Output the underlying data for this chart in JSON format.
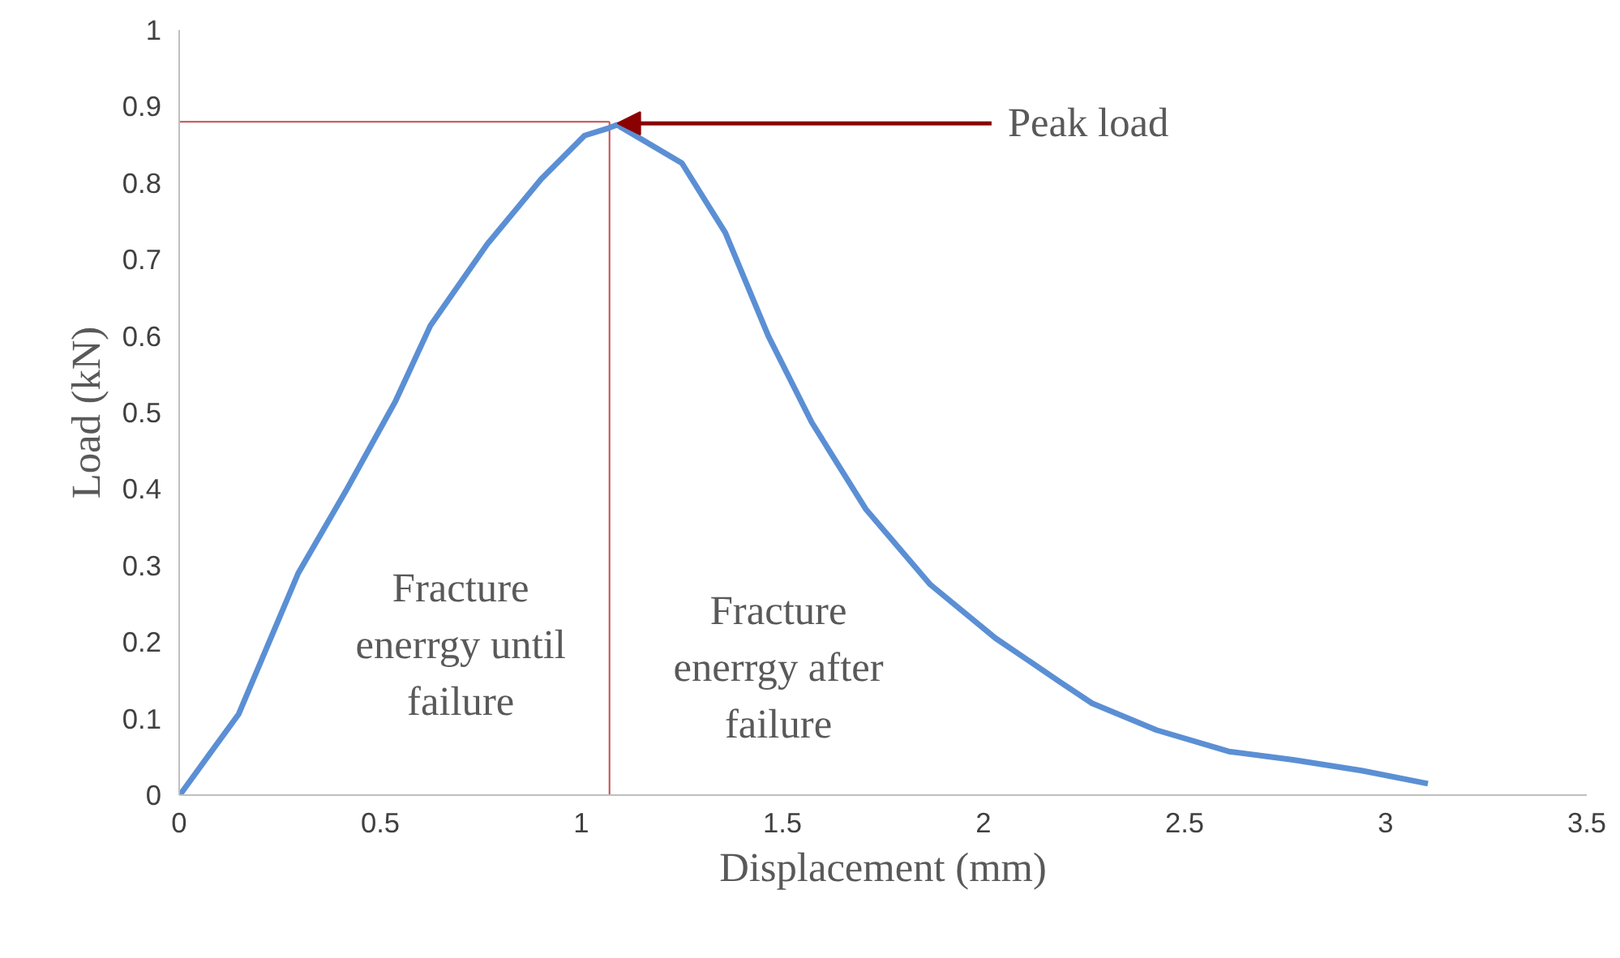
{
  "chart_data": {
    "type": "line",
    "xlabel": "Displacement (mm)",
    "ylabel": "Load (kN)",
    "x": [
      0,
      0.007,
      0.148,
      0.296,
      0.417,
      0.538,
      0.625,
      0.766,
      0.9,
      1.008,
      1.069,
      1.089,
      1.25,
      1.358,
      1.465,
      1.573,
      1.707,
      1.868,
      2.03,
      2.19,
      2.27,
      2.43,
      2.61,
      2.77,
      2.94,
      3.105
    ],
    "series": [
      {
        "color": "#5b8fd4",
        "values": [
          0,
          0.004,
          0.106,
          0.29,
          0.4,
          0.515,
          0.614,
          0.72,
          0.805,
          0.862,
          0.872,
          0.876,
          0.826,
          0.735,
          0.6,
          0.487,
          0.374,
          0.275,
          0.205,
          0.148,
          0.12,
          0.085,
          0.057,
          0.046,
          0.032,
          0.015
        ]
      }
    ],
    "xlim": [
      0,
      3.5
    ],
    "ylim": [
      0,
      1
    ],
    "xticks": [
      0,
      0.5,
      1,
      1.5,
      2,
      2.5,
      3,
      3.5
    ],
    "yticks": [
      0,
      0.1,
      0.2,
      0.3,
      0.4,
      0.5,
      0.6,
      0.7,
      0.8,
      0.9,
      1
    ],
    "ref_lines": [
      {
        "axis": "x",
        "value": 1.07,
        "color": "#c0504d"
      },
      {
        "axis": "y",
        "value": 0.88,
        "color": "#c0504d"
      }
    ],
    "annotations": [
      {
        "text": "Peak load",
        "x": 1.07,
        "y": 0.875
      },
      "Fracture enerrgy until failure",
      "Fracture enerrgy after failure"
    ],
    "grid": false,
    "marker": "none",
    "line_style": "solid"
  }
}
